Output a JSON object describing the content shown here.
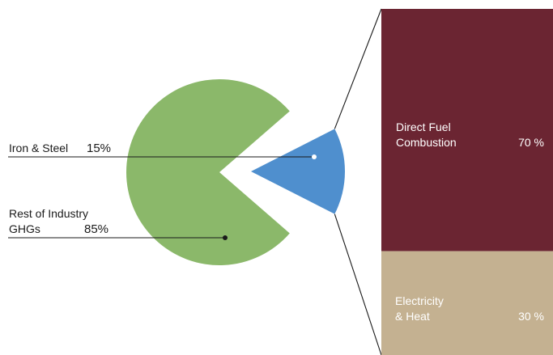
{
  "chart_data": [
    {
      "type": "pie",
      "slices": [
        {
          "label": "Iron & Steel",
          "value": 15,
          "display": "15%",
          "color": "#4f8fce",
          "exploded": true
        },
        {
          "label": "Rest of Industry GHGs",
          "value": 85,
          "display": "85%",
          "color": "#8bb86a"
        }
      ],
      "labels": {
        "iron_steel_name": "Iron & Steel",
        "iron_steel_value": "15%",
        "rest_line1": "Rest of Industry",
        "rest_line2": "GHGs",
        "rest_value": "85%"
      }
    },
    {
      "type": "bar",
      "orientation": "stacked-vertical",
      "breakdown_of": "Iron & Steel",
      "segments": [
        {
          "label_line1": "Direct Fuel",
          "label_line2": "Combustion",
          "value": 70,
          "display": "70 %",
          "color": "#6b2532"
        },
        {
          "label_line1": "Electricity",
          "label_line2": "& Heat",
          "value": 30,
          "display": "30 %",
          "color": "#c4b191"
        }
      ]
    }
  ]
}
